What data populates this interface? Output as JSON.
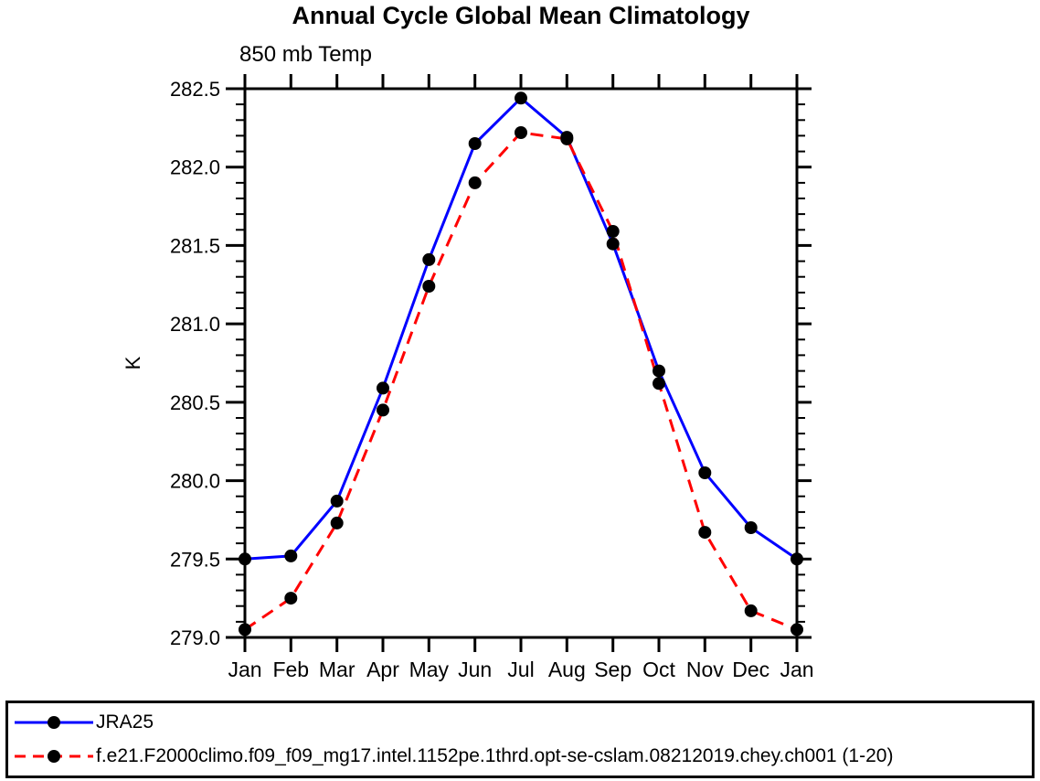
{
  "chart_data": {
    "type": "line",
    "title": "Annual Cycle Global Mean Climatology",
    "subtitle": "850 mb Temp",
    "ylabel": "K",
    "xlabel": "",
    "categories": [
      "Jan",
      "Feb",
      "Mar",
      "Apr",
      "May",
      "Jun",
      "Jul",
      "Aug",
      "Sep",
      "Oct",
      "Nov",
      "Dec",
      "Jan"
    ],
    "ylim": [
      279.0,
      282.5
    ],
    "ytick_step": 0.5,
    "yminor_step": 0.1,
    "y_tick_labels": [
      "279.0",
      "279.5",
      "280.0",
      "280.5",
      "281.0",
      "281.5",
      "282.0",
      "282.5"
    ],
    "grid": false,
    "frame": "box-with-outward-ticks",
    "legend_position": "bottom-left-box",
    "axis_color": "#000000",
    "series": [
      {
        "name": "JRA25",
        "color": "#0000ff",
        "style": "solid",
        "marker": "circle",
        "marker_color": "#000000",
        "values": [
          279.5,
          279.52,
          279.87,
          280.59,
          281.41,
          282.15,
          282.44,
          282.19,
          281.51,
          280.7,
          280.05,
          279.7,
          279.5
        ]
      },
      {
        "name": "f.e21.F2000climo.f09_f09_mg17.intel.1152pe.1thrd.opt-se-cslam.08212019.chey.ch001 (1-20)",
        "color": "#ff0000",
        "style": "dashed",
        "marker": "circle",
        "marker_color": "#000000",
        "values": [
          279.05,
          279.25,
          279.73,
          280.45,
          281.24,
          281.9,
          282.22,
          282.18,
          281.59,
          280.62,
          279.67,
          279.17,
          279.05
        ]
      }
    ]
  }
}
